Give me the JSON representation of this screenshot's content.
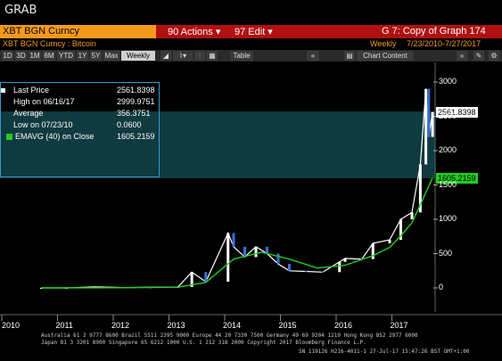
{
  "window": {
    "title": "GRAB"
  },
  "menubar": {
    "ticker": "XBT BGN Curncy",
    "actions": "90 Actions ▾",
    "edit": "97 Edit ▾",
    "graph": "G 7: Copy of Graph 174"
  },
  "subbar": {
    "security": "XBT BGN Curncy : Bitcoin",
    "period": "Weekly",
    "range": "7/23/2010-7/27/2017"
  },
  "toolbar": {
    "buttons": [
      "1D",
      "3D",
      "1M",
      "6M",
      "YTD",
      "1Y",
      "5Y",
      "Max"
    ],
    "frequency": "Weekly",
    "table": "Table",
    "chart_content": "Chart Content"
  },
  "legend": {
    "last_label": "Last Price",
    "last_value": "2561.8398",
    "high_label": "High on 06/16/17",
    "high_value": "2999.9751",
    "avg_label": "Average",
    "avg_value": "356.3751",
    "low_label": "Low on 07/23/10",
    "low_value": "0.0600",
    "ema_label": "EMAVG (40) on Close",
    "ema_value": "1605.2159"
  },
  "tags": {
    "last": "2561.8398",
    "ema": "1605.2159"
  },
  "colors": {
    "price": "#ffffff",
    "candle_up": "#ffffff",
    "candle_down": "#3a6fd8",
    "ema": "#22cc22",
    "accent_orange": "#f59a1c",
    "menu_red": "#b01010",
    "legend_bg": "#0f3a3f"
  },
  "footer": {
    "line1": "Australia 61 2 9777 8600 Brazil 5511 2395 9000 Europe 44 20 7330 7500 Germany 49 69 9204 1210 Hong Kong 852 2977 6000",
    "line2": "Japan 81 3 3201 8900        Singapore 65 6212 1000        U.S. 1 212 318 2000        Copyright 2017 Bloomberg Finance L.P.",
    "line3": "SN 119126 H216-4011-1 27-Jul-17 15:47:26 BST  GMT+1:00"
  },
  "chart_data": {
    "type": "line",
    "title": "",
    "xlabel": "",
    "ylabel": "",
    "x_ticks": [
      "2010",
      "2011",
      "2012",
      "2013",
      "2014",
      "2015",
      "2016",
      "2017"
    ],
    "y_ticks": [
      0,
      500,
      1000,
      1500,
      2000,
      2500,
      3000
    ],
    "ylim": [
      -200,
      3200
    ],
    "grid": false,
    "series": [
      {
        "name": "Last Price",
        "x": [
          2010.55,
          2011.0,
          2011.5,
          2012.0,
          2012.5,
          2013.0,
          2013.25,
          2013.5,
          2013.9,
          2014.0,
          2014.2,
          2014.4,
          2014.6,
          2014.8,
          2015.0,
          2015.3,
          2015.6,
          2015.9,
          2016.0,
          2016.3,
          2016.5,
          2016.8,
          2017.0,
          2017.2,
          2017.35,
          2017.45,
          2017.5,
          2017.57
        ],
        "values": [
          0.06,
          0.3,
          15,
          5,
          10,
          13,
          230,
          90,
          800,
          600,
          450,
          600,
          500,
          350,
          250,
          240,
          230,
          380,
          430,
          420,
          650,
          700,
          1000,
          1100,
          1800,
          2900,
          2200,
          2562
        ]
      },
      {
        "name": "EMAVG (40) on Close",
        "x": [
          2010.55,
          2012.0,
          2013.0,
          2013.5,
          2014.0,
          2014.5,
          2015.0,
          2015.5,
          2016.0,
          2016.5,
          2016.8,
          2017.0,
          2017.2,
          2017.4,
          2017.57
        ],
        "values": [
          0,
          3,
          10,
          80,
          420,
          520,
          420,
          290,
          330,
          470,
          590,
          760,
          950,
          1300,
          1605
        ]
      }
    ]
  }
}
